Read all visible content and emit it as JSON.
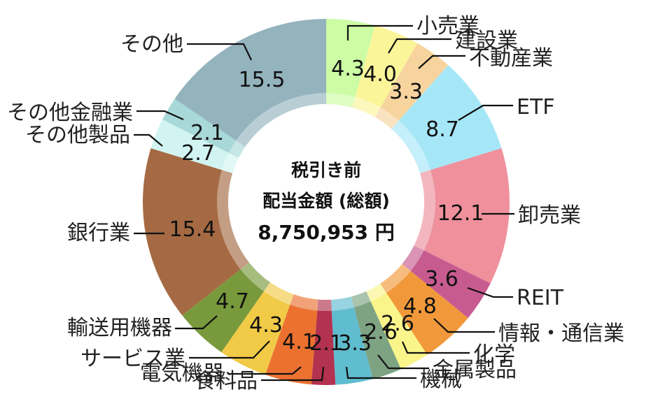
{
  "chart_data": {
    "type": "pie",
    "center_text": [
      "税引き前",
      "配当金額 (総額)",
      "8,750,953 円"
    ],
    "slices": [
      {
        "label": "小売業",
        "value": 4.3,
        "value_label": "4.3",
        "color": "#ccfca4"
      },
      {
        "label": "建設業",
        "value": 4.0,
        "value_label": "4.0",
        "color": "#fbf59a"
      },
      {
        "label": "不動産業",
        "value": 3.3,
        "value_label": "3.3",
        "color": "#f7d49e"
      },
      {
        "label": "ETF",
        "value": 8.7,
        "value_label": "8.7",
        "color": "#a6e7f7"
      },
      {
        "label": "卸売業",
        "value": 12.1,
        "value_label": "12.1",
        "color": "#ef909c"
      },
      {
        "label": "REIT",
        "value": 3.6,
        "value_label": "3.6",
        "color": "#c75b90"
      },
      {
        "label": "情報・通信業",
        "value": 4.8,
        "value_label": "4.8",
        "color": "#f1993a"
      },
      {
        "label": "化学",
        "value": 2.6,
        "value_label": "2.6",
        "color": "#faf58a"
      },
      {
        "label": "金属製品",
        "value": 2.6,
        "value_label": "2.6",
        "color": "#7da382"
      },
      {
        "label": "機械",
        "value": 3.3,
        "value_label": "3.3",
        "color": "#60bccf"
      },
      {
        "label": "食料品",
        "value": 2.1,
        "value_label": "2.1",
        "color": "#b3324f"
      },
      {
        "label": "電気機器",
        "value": 4.1,
        "value_label": "4.1",
        "color": "#ec7130"
      },
      {
        "label": "サービス業",
        "value": 4.3,
        "value_label": "4.3",
        "color": "#f1ca47"
      },
      {
        "label": "輸送用機器",
        "value": 4.7,
        "value_label": "4.7",
        "color": "#789a3c"
      },
      {
        "label": "銀行業",
        "value": 15.4,
        "value_label": "15.4",
        "color": "#a56a43"
      },
      {
        "label": "その他製品",
        "value": 2.7,
        "value_label": "2.7",
        "color": "#d1f4f2"
      },
      {
        "label": "その他金融業",
        "value": 2.1,
        "value_label": "2.1",
        "color": "#a8d8d8"
      },
      {
        "label": "その他",
        "value": 15.5,
        "value_label": "15.5",
        "color": "#93b3bd"
      }
    ]
  }
}
